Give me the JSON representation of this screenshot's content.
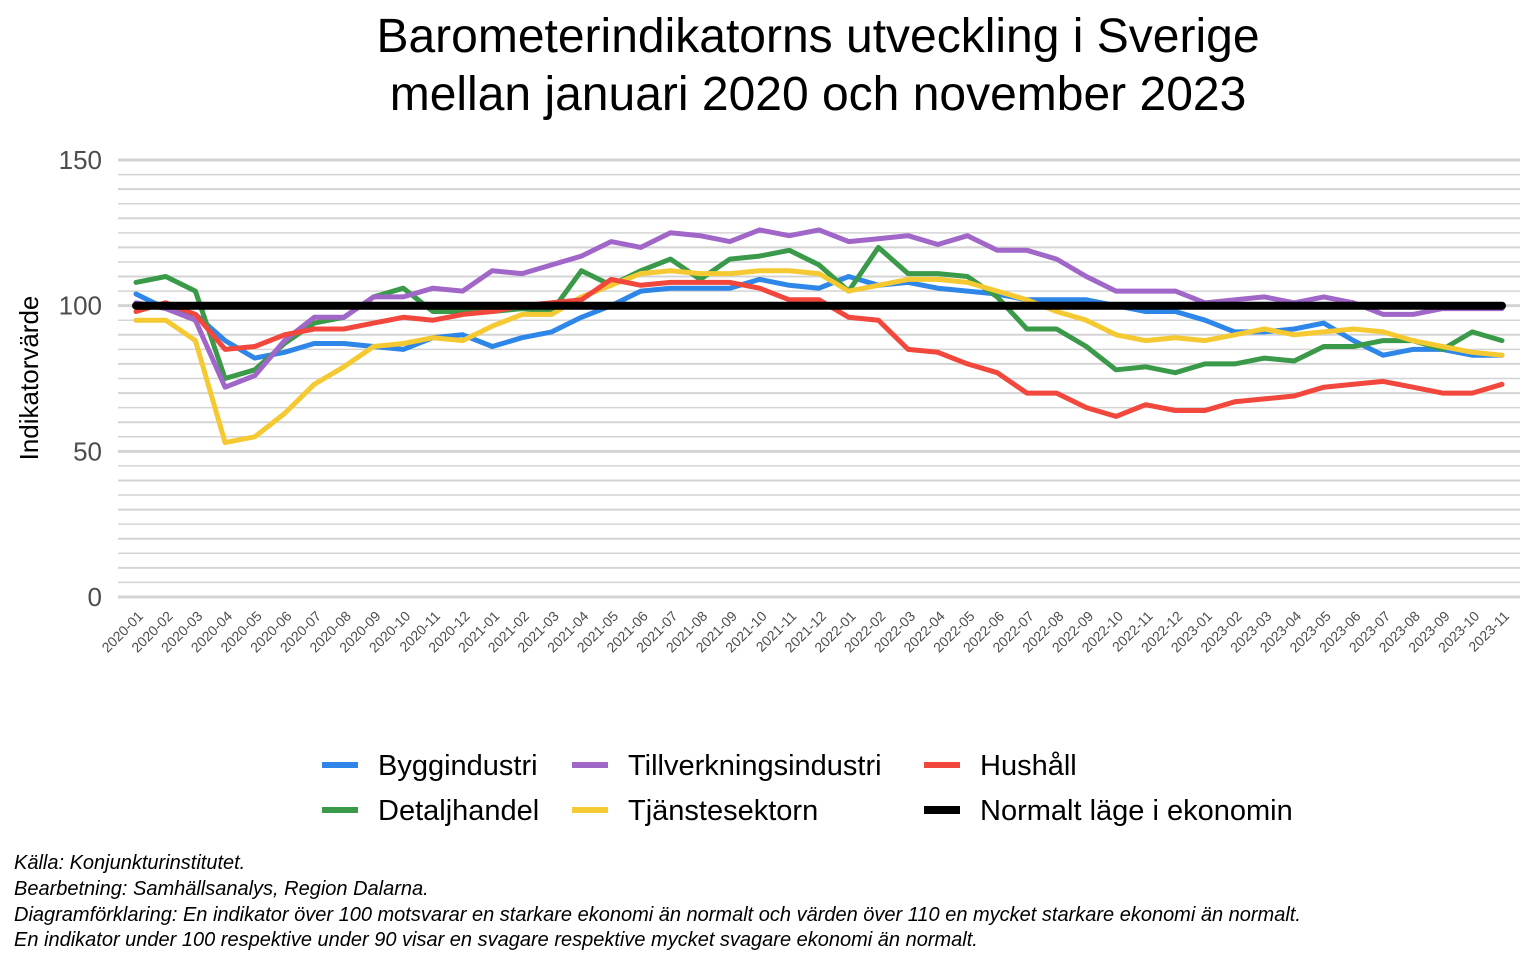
{
  "chart_data": {
    "type": "line",
    "title_lines": [
      "Barometerindikatorns utveckling i Sverige",
      "mellan januari 2020 och november 2023"
    ],
    "xlabel": "",
    "ylabel": "Indikatorvärde",
    "ylim": [
      0,
      150
    ],
    "yticks": [
      0,
      50,
      100,
      150
    ],
    "y_minor_step": 10,
    "grid": true,
    "legend_position": "bottom",
    "x": [
      "2020-01",
      "2020-02",
      "2020-03",
      "2020-04",
      "2020-05",
      "2020-06",
      "2020-07",
      "2020-08",
      "2020-09",
      "2020-10",
      "2020-11",
      "2020-12",
      "2021-01",
      "2021-02",
      "2021-03",
      "2021-04",
      "2021-05",
      "2021-06",
      "2021-07",
      "2021-08",
      "2021-09",
      "2021-10",
      "2021-11",
      "2021-12",
      "2022-01",
      "2022-02",
      "2022-03",
      "2022-04",
      "2022-05",
      "2022-06",
      "2022-07",
      "2022-08",
      "2022-09",
      "2022-10",
      "2022-11",
      "2022-12",
      "2023-01",
      "2023-02",
      "2023-03",
      "2023-04",
      "2023-05",
      "2023-06",
      "2023-07",
      "2023-08",
      "2023-09",
      "2023-10",
      "2023-11"
    ],
    "series": [
      {
        "name": "Byggindustri",
        "color": "#2e86e8",
        "values": [
          104,
          99,
          97,
          88,
          82,
          84,
          87,
          87,
          86,
          85,
          89,
          90,
          86,
          89,
          91,
          96,
          100,
          105,
          106,
          106,
          106,
          109,
          107,
          106,
          110,
          107,
          108,
          106,
          105,
          104,
          102,
          102,
          102,
          100,
          98,
          98,
          95,
          91,
          91,
          92,
          94,
          88,
          83,
          85,
          85,
          83,
          83
        ]
      },
      {
        "name": "Detaljhandel",
        "color": "#3a9a4a",
        "values": [
          108,
          110,
          105,
          75,
          78,
          87,
          94,
          96,
          103,
          106,
          98,
          98,
          98,
          99,
          98,
          112,
          107,
          112,
          116,
          109,
          116,
          117,
          119,
          114,
          105,
          120,
          111,
          111,
          110,
          103,
          92,
          92,
          86,
          78,
          79,
          77,
          80,
          80,
          82,
          81,
          86,
          86,
          88,
          88,
          85,
          91,
          88
        ]
      },
      {
        "name": "Tillverkningsindustri",
        "color": "#a066c8",
        "values": [
          101,
          99,
          95,
          72,
          76,
          88,
          96,
          96,
          103,
          103,
          106,
          105,
          112,
          111,
          114,
          117,
          122,
          120,
          125,
          124,
          122,
          126,
          124,
          126,
          122,
          123,
          124,
          121,
          124,
          119,
          119,
          116,
          110,
          105,
          105,
          105,
          101,
          102,
          103,
          101,
          103,
          101,
          97,
          97,
          99,
          99,
          99
        ]
      },
      {
        "name": "Tjänstesektorn",
        "color": "#f5c932",
        "values": [
          95,
          95,
          88,
          53,
          55,
          63,
          73,
          79,
          86,
          87,
          89,
          88,
          93,
          97,
          97,
          103,
          107,
          111,
          112,
          111,
          111,
          112,
          112,
          111,
          105,
          107,
          109,
          109,
          108,
          105,
          102,
          98,
          95,
          90,
          88,
          89,
          88,
          90,
          92,
          90,
          91,
          92,
          91,
          88,
          86,
          84,
          83
        ]
      },
      {
        "name": "Hushåll",
        "color": "#f2473c",
        "values": [
          98,
          101,
          97,
          85,
          86,
          90,
          92,
          92,
          94,
          96,
          95,
          97,
          98,
          100,
          101,
          102,
          109,
          107,
          108,
          108,
          108,
          106,
          102,
          102,
          96,
          95,
          85,
          84,
          80,
          77,
          70,
          70,
          65,
          62,
          66,
          64,
          64,
          67,
          68,
          69,
          72,
          73,
          74,
          72,
          70,
          70,
          73
        ]
      },
      {
        "name": "Normalt läge i ekonomin",
        "color": "#000000",
        "values": [
          100,
          100,
          100,
          100,
          100,
          100,
          100,
          100,
          100,
          100,
          100,
          100,
          100,
          100,
          100,
          100,
          100,
          100,
          100,
          100,
          100,
          100,
          100,
          100,
          100,
          100,
          100,
          100,
          100,
          100,
          100,
          100,
          100,
          100,
          100,
          100,
          100,
          100,
          100,
          100,
          100,
          100,
          100,
          100,
          100,
          100,
          100
        ]
      }
    ],
    "legend_order": [
      "Byggindustri",
      "Tillverkningsindustri",
      "Hushåll",
      "Detaljhandel",
      "Tjänstesektorn",
      "Normalt läge i ekonomin"
    ]
  },
  "caption": {
    "lines": [
      "Källa: Konjunkturinstitutet.",
      "Bearbetning: Samhällsanalys, Region Dalarna.",
      "Diagramförklaring: En indikator över 100 motsvarar en starkare ekonomi än normalt och värden över 110 en mycket starkare ekonomi än normalt.",
      "En indikator under 100 respektive under 90 visar en svagare respektive mycket svagare ekonomi än normalt."
    ]
  }
}
